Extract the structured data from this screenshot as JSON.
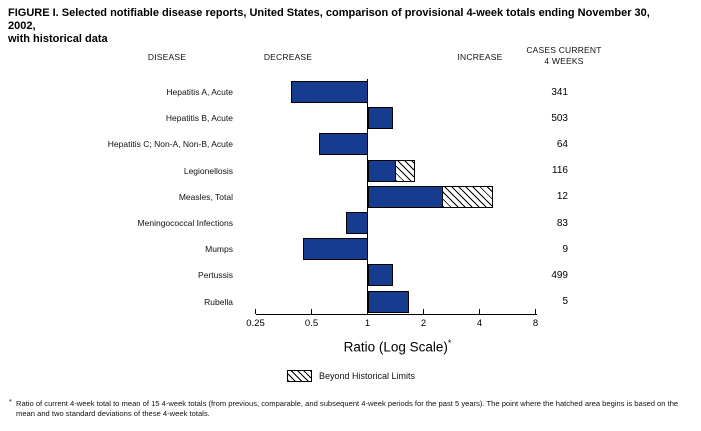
{
  "title": {
    "line1": "FIGURE I. Selected notifiable disease reports, United States, comparison of provisional 4-week totals ending November 30, 2002,",
    "line2": "with historical data"
  },
  "headers": {
    "disease": "DISEASE",
    "decrease": "DECREASE",
    "increase": "INCREASE",
    "cases_line1": "CASES CURRENT",
    "cases_line2": "4 WEEKS"
  },
  "chart_data": {
    "type": "bar",
    "orientation": "horizontal",
    "scale": "log",
    "baseline": 1,
    "axis_ticks": [
      "0.25",
      "0.5",
      "1",
      "2",
      "4",
      "8"
    ],
    "axis_range": [
      0.25,
      8
    ],
    "xlabel": "Ratio (Log Scale)",
    "xlabel_sup": "*",
    "rows": [
      {
        "disease": "Hepatitis A, Acute",
        "ratio": 0.39,
        "hatch_from": null,
        "cases": "341"
      },
      {
        "disease": "Hepatitis B, Acute",
        "ratio": 1.35,
        "hatch_from": null,
        "cases": "503"
      },
      {
        "disease": "Hepatitis C; Non-A, Non-B, Acute",
        "ratio": 0.55,
        "hatch_from": null,
        "cases": "64"
      },
      {
        "disease": "Legionellosis",
        "ratio": 1.8,
        "hatch_from": 1.4,
        "cases": "116"
      },
      {
        "disease": "Measles, Total",
        "ratio": 4.7,
        "hatch_from": 2.5,
        "cases": "12"
      },
      {
        "disease": "Meningococcal Infections",
        "ratio": 0.77,
        "hatch_from": null,
        "cases": "83"
      },
      {
        "disease": "Mumps",
        "ratio": 0.45,
        "hatch_from": null,
        "cases": "9"
      },
      {
        "disease": "Pertussis",
        "ratio": 1.35,
        "hatch_from": null,
        "cases": "499"
      },
      {
        "disease": "Rubella",
        "ratio": 1.65,
        "hatch_from": null,
        "cases": "5"
      }
    ],
    "legend": {
      "hatch_label": "Beyond Historical Limits"
    }
  },
  "footnote": {
    "marker": "*",
    "text": "Ratio of current 4-week total to mean of 15 4-week totals (from previous, comparable, and subsequent 4-week periods for the past 5 years). The point where the hatched area begins is based on the mean and two standard deviations of these 4-week totals."
  },
  "colors": {
    "bar_fill": "#163c8f",
    "bar_border": "#000000",
    "background": "#ffffff"
  }
}
